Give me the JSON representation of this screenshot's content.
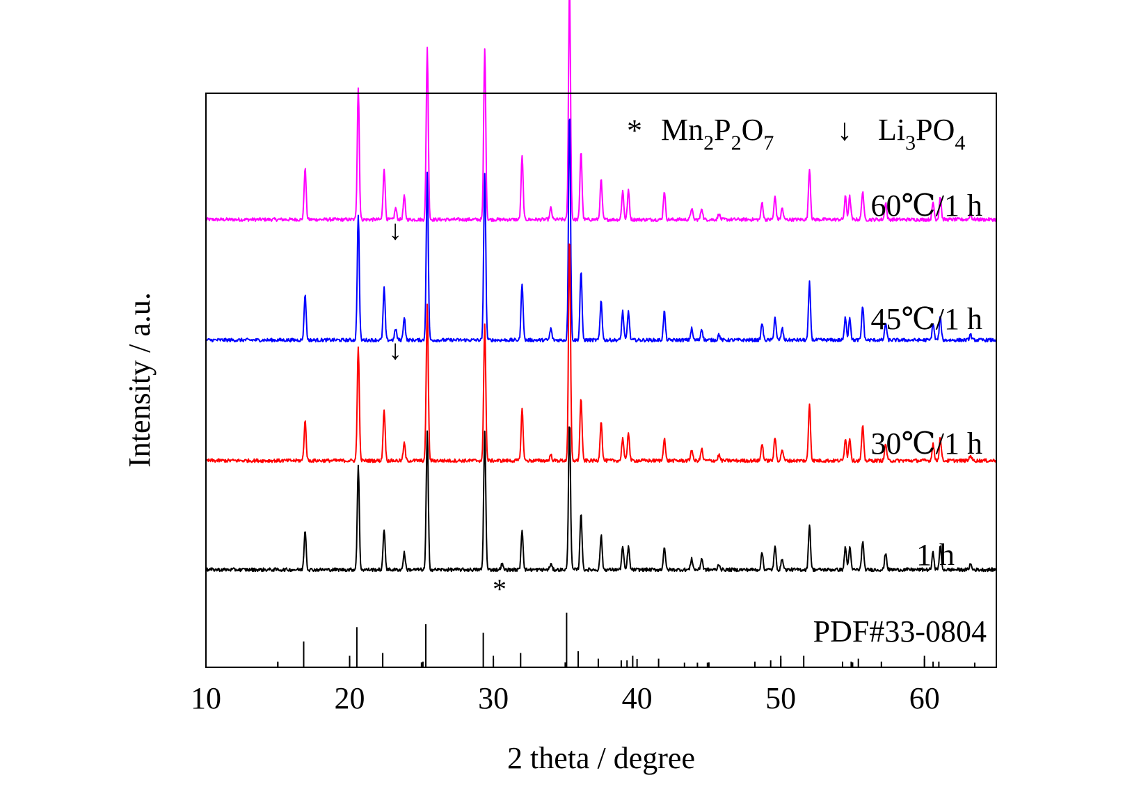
{
  "chart_data": {
    "type": "line",
    "title": "",
    "xlabel": "2 theta / degree",
    "ylabel": "Intensity / a.u.",
    "xlim": [
      10,
      65
    ],
    "xticks": [
      10,
      20,
      30,
      40,
      50,
      60
    ],
    "xtick_labels": [
      "10",
      "20",
      "30",
      "40",
      "50",
      "60"
    ],
    "y_ticks_shown": false,
    "series": [
      {
        "name": "60℃/1 h",
        "label": "60℃/1 h",
        "color": "#ff00ff",
        "baseline": 0.78,
        "peaks": [
          {
            "x": 16.9,
            "h": 0.09
          },
          {
            "x": 20.6,
            "h": 0.23
          },
          {
            "x": 22.4,
            "h": 0.09
          },
          {
            "x": 23.2,
            "h": 0.02
          },
          {
            "x": 23.8,
            "h": 0.04
          },
          {
            "x": 25.4,
            "h": 0.3
          },
          {
            "x": 29.4,
            "h": 0.3
          },
          {
            "x": 32.0,
            "h": 0.11
          },
          {
            "x": 34.0,
            "h": 0.02
          },
          {
            "x": 35.3,
            "h": 0.4
          },
          {
            "x": 36.1,
            "h": 0.12
          },
          {
            "x": 37.5,
            "h": 0.07
          },
          {
            "x": 39.0,
            "h": 0.05
          },
          {
            "x": 39.4,
            "h": 0.05
          },
          {
            "x": 41.9,
            "h": 0.05
          },
          {
            "x": 43.8,
            "h": 0.02
          },
          {
            "x": 44.5,
            "h": 0.02
          },
          {
            "x": 45.7,
            "h": 0.01
          },
          {
            "x": 48.7,
            "h": 0.03
          },
          {
            "x": 49.6,
            "h": 0.04
          },
          {
            "x": 50.1,
            "h": 0.02
          },
          {
            "x": 52.0,
            "h": 0.09
          },
          {
            "x": 54.5,
            "h": 0.04
          },
          {
            "x": 54.8,
            "h": 0.04
          },
          {
            "x": 55.7,
            "h": 0.05
          },
          {
            "x": 57.3,
            "h": 0.03
          },
          {
            "x": 60.6,
            "h": 0.03
          },
          {
            "x": 61.1,
            "h": 0.04
          },
          {
            "x": 63.2,
            "h": 0.01
          }
        ]
      },
      {
        "name": "45℃/1 h",
        "label": "45℃/1 h",
        "color": "#0000ff",
        "baseline": 0.57,
        "peaks": [
          {
            "x": 16.9,
            "h": 0.08
          },
          {
            "x": 20.6,
            "h": 0.22
          },
          {
            "x": 22.4,
            "h": 0.09
          },
          {
            "x": 23.2,
            "h": 0.02
          },
          {
            "x": 23.8,
            "h": 0.04
          },
          {
            "x": 25.4,
            "h": 0.29
          },
          {
            "x": 29.4,
            "h": 0.29
          },
          {
            "x": 32.0,
            "h": 0.1
          },
          {
            "x": 34.0,
            "h": 0.02
          },
          {
            "x": 35.3,
            "h": 0.4
          },
          {
            "x": 36.1,
            "h": 0.12
          },
          {
            "x": 37.5,
            "h": 0.07
          },
          {
            "x": 39.0,
            "h": 0.05
          },
          {
            "x": 39.4,
            "h": 0.05
          },
          {
            "x": 41.9,
            "h": 0.05
          },
          {
            "x": 43.8,
            "h": 0.02
          },
          {
            "x": 44.5,
            "h": 0.02
          },
          {
            "x": 45.7,
            "h": 0.01
          },
          {
            "x": 48.7,
            "h": 0.03
          },
          {
            "x": 49.6,
            "h": 0.04
          },
          {
            "x": 50.1,
            "h": 0.02
          },
          {
            "x": 52.0,
            "h": 0.1
          },
          {
            "x": 54.5,
            "h": 0.04
          },
          {
            "x": 54.8,
            "h": 0.04
          },
          {
            "x": 55.7,
            "h": 0.06
          },
          {
            "x": 57.3,
            "h": 0.03
          },
          {
            "x": 60.6,
            "h": 0.03
          },
          {
            "x": 61.1,
            "h": 0.04
          },
          {
            "x": 63.2,
            "h": 0.01
          }
        ]
      },
      {
        "name": "30℃/1 h",
        "label": "30℃/1 h",
        "color": "#ff0000",
        "baseline": 0.36,
        "peaks": [
          {
            "x": 16.9,
            "h": 0.07
          },
          {
            "x": 20.6,
            "h": 0.2
          },
          {
            "x": 22.4,
            "h": 0.09
          },
          {
            "x": 23.8,
            "h": 0.03
          },
          {
            "x": 25.4,
            "h": 0.27
          },
          {
            "x": 29.4,
            "h": 0.24
          },
          {
            "x": 32.0,
            "h": 0.09
          },
          {
            "x": 34.0,
            "h": 0.01
          },
          {
            "x": 35.3,
            "h": 0.39
          },
          {
            "x": 36.1,
            "h": 0.11
          },
          {
            "x": 37.5,
            "h": 0.07
          },
          {
            "x": 39.0,
            "h": 0.04
          },
          {
            "x": 39.4,
            "h": 0.05
          },
          {
            "x": 41.9,
            "h": 0.04
          },
          {
            "x": 43.8,
            "h": 0.02
          },
          {
            "x": 44.5,
            "h": 0.02
          },
          {
            "x": 45.7,
            "h": 0.01
          },
          {
            "x": 48.7,
            "h": 0.03
          },
          {
            "x": 49.6,
            "h": 0.04
          },
          {
            "x": 50.1,
            "h": 0.02
          },
          {
            "x": 52.0,
            "h": 0.1
          },
          {
            "x": 54.5,
            "h": 0.04
          },
          {
            "x": 54.8,
            "h": 0.04
          },
          {
            "x": 55.7,
            "h": 0.06
          },
          {
            "x": 57.3,
            "h": 0.03
          },
          {
            "x": 60.6,
            "h": 0.03
          },
          {
            "x": 61.1,
            "h": 0.04
          },
          {
            "x": 63.2,
            "h": 0.01
          }
        ]
      },
      {
        "name": "1 h",
        "label": "1 h",
        "color": "#000000",
        "baseline": 0.17,
        "peaks": [
          {
            "x": 16.9,
            "h": 0.07
          },
          {
            "x": 20.6,
            "h": 0.18
          },
          {
            "x": 22.4,
            "h": 0.07
          },
          {
            "x": 23.8,
            "h": 0.03
          },
          {
            "x": 25.4,
            "h": 0.24
          },
          {
            "x": 29.4,
            "h": 0.24
          },
          {
            "x": 30.6,
            "h": 0.01
          },
          {
            "x": 32.0,
            "h": 0.07
          },
          {
            "x": 34.0,
            "h": 0.01
          },
          {
            "x": 35.3,
            "h": 0.26
          },
          {
            "x": 36.1,
            "h": 0.1
          },
          {
            "x": 37.5,
            "h": 0.06
          },
          {
            "x": 39.0,
            "h": 0.04
          },
          {
            "x": 39.4,
            "h": 0.04
          },
          {
            "x": 41.9,
            "h": 0.04
          },
          {
            "x": 43.8,
            "h": 0.02
          },
          {
            "x": 44.5,
            "h": 0.02
          },
          {
            "x": 45.7,
            "h": 0.01
          },
          {
            "x": 48.7,
            "h": 0.03
          },
          {
            "x": 49.6,
            "h": 0.04
          },
          {
            "x": 50.1,
            "h": 0.02
          },
          {
            "x": 52.0,
            "h": 0.08
          },
          {
            "x": 54.5,
            "h": 0.04
          },
          {
            "x": 54.8,
            "h": 0.04
          },
          {
            "x": 55.7,
            "h": 0.05
          },
          {
            "x": 57.3,
            "h": 0.03
          },
          {
            "x": 60.6,
            "h": 0.03
          },
          {
            "x": 61.1,
            "h": 0.04
          },
          {
            "x": 63.2,
            "h": 0.01
          }
        ]
      }
    ],
    "reference": {
      "name": "PDF#33-0804",
      "label": "PDF#33-0804",
      "color": "#000000",
      "lines": [
        {
          "x": 15.0,
          "h": 0.01
        },
        {
          "x": 16.8,
          "h": 0.045
        },
        {
          "x": 20.0,
          "h": 0.02
        },
        {
          "x": 20.5,
          "h": 0.07
        },
        {
          "x": 22.3,
          "h": 0.025
        },
        {
          "x": 25.1,
          "h": 0.01
        },
        {
          "x": 25.3,
          "h": 0.075
        },
        {
          "x": 29.3,
          "h": 0.06
        },
        {
          "x": 30.0,
          "h": 0.02
        },
        {
          "x": 31.9,
          "h": 0.025
        },
        {
          "x": 35.1,
          "h": 0.095
        },
        {
          "x": 35.9,
          "h": 0.028
        },
        {
          "x": 37.3,
          "h": 0.015
        },
        {
          "x": 38.9,
          "h": 0.012
        },
        {
          "x": 39.3,
          "h": 0.012
        },
        {
          "x": 39.7,
          "h": 0.02
        },
        {
          "x": 41.5,
          "h": 0.015
        },
        {
          "x": 43.3,
          "h": 0.008
        },
        {
          "x": 44.2,
          "h": 0.008
        },
        {
          "x": 44.9,
          "h": 0.008
        },
        {
          "x": 48.2,
          "h": 0.01
        },
        {
          "x": 49.3,
          "h": 0.012
        },
        {
          "x": 50.0,
          "h": 0.02
        },
        {
          "x": 51.6,
          "h": 0.02
        },
        {
          "x": 54.3,
          "h": 0.01
        },
        {
          "x": 54.9,
          "h": 0.01
        },
        {
          "x": 55.4,
          "h": 0.015
        },
        {
          "x": 57.0,
          "h": 0.01
        },
        {
          "x": 60.0,
          "h": 0.02
        },
        {
          "x": 60.6,
          "h": 0.01
        },
        {
          "x": 61.0,
          "h": 0.01
        },
        {
          "x": 63.5,
          "h": 0.008
        }
      ]
    },
    "legend": {
      "position": "top-right",
      "items": [
        {
          "symbol": "*",
          "main": "Mn",
          "parts": [
            [
              "Mn",
              "2"
            ],
            [
              "P",
              "2"
            ],
            [
              "O",
              "7"
            ]
          ]
        },
        {
          "symbol": "↓",
          "main": "Li",
          "parts": [
            [
              "Li",
              "3"
            ],
            [
              "PO",
              "4"
            ]
          ]
        }
      ]
    },
    "annotations": [
      {
        "text": "↓",
        "series": "60℃/1 h",
        "x": 23.2
      },
      {
        "text": "↓",
        "series": "45℃/1 h",
        "x": 23.2
      },
      {
        "text": "*",
        "series": "1 h",
        "x": 30.6
      }
    ]
  }
}
